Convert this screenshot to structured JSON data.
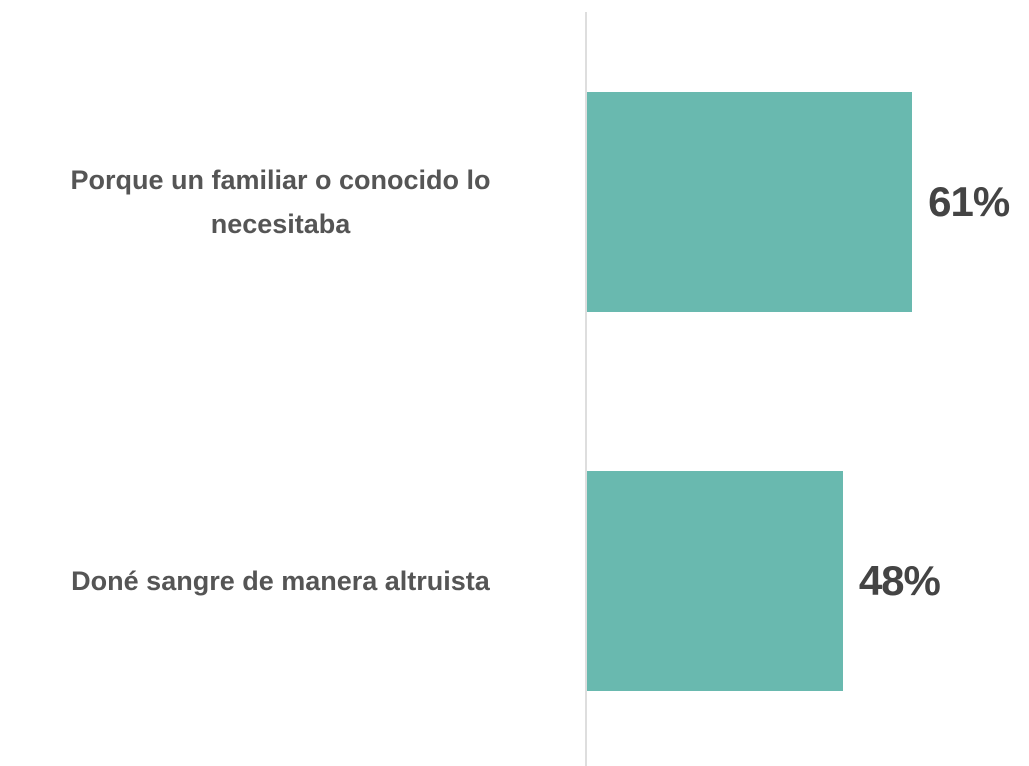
{
  "chart_data": {
    "type": "bar",
    "orientation": "horizontal",
    "categories": [
      "Porque un familiar o conocido lo necesitaba",
      "Doné sangre de manera altruista"
    ],
    "values": [
      61,
      48
    ],
    "value_labels": [
      "61%",
      "48%"
    ],
    "color": "#69b9af"
  }
}
